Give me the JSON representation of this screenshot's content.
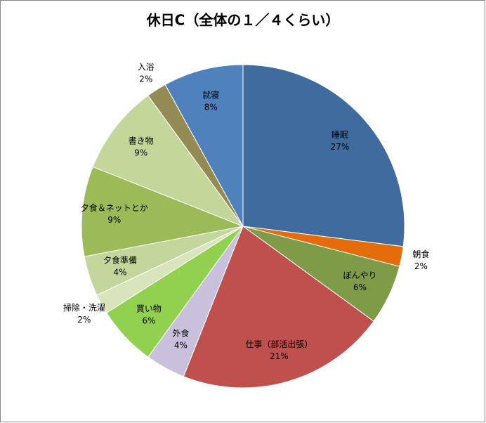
{
  "chart_data": {
    "type": "pie",
    "title": "休日C（全体の１／４くらい）",
    "categories": [
      "睡眠",
      "朝食",
      "ぼんやり",
      "仕事（部活出張）",
      "外食",
      "買い物",
      "掃除・洗濯",
      "夕食準備",
      "夕食＆ネットとか",
      "書き物",
      "入浴",
      "就寝"
    ],
    "values": [
      27,
      2,
      6,
      21,
      4,
      6,
      2,
      4,
      9,
      9,
      2,
      8
    ],
    "value_labels": [
      "27%",
      "2%",
      "6%",
      "21%",
      "4%",
      "6%",
      "2%",
      "4%",
      "9%",
      "9%",
      "2%",
      "8%"
    ],
    "colors": [
      "#3f6b9e",
      "#e46c0a",
      "#7f9b48",
      "#c0504d",
      "#c9c0dc",
      "#92d050",
      "#d8e4bc",
      "#c3d69b",
      "#9bbb59",
      "#c4d79b",
      "#948a54",
      "#4f81bd"
    ]
  }
}
